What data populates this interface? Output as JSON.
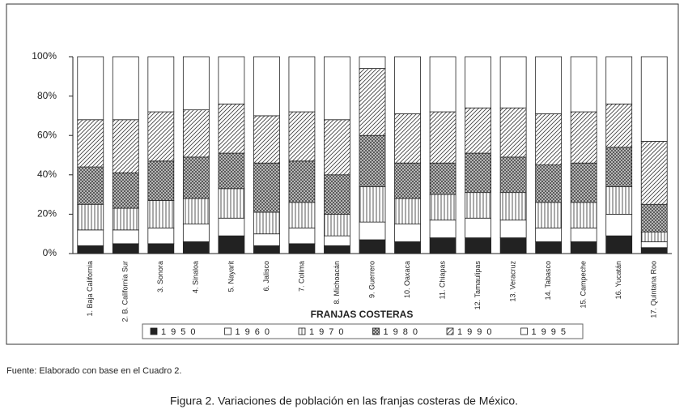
{
  "chart_data": {
    "type": "stacked_bar",
    "categories": [
      "1. Baja California",
      "2. B. California Sur",
      "3. Sonora",
      "4. Sinaloa",
      "5. Nayarit",
      "6. Jalisco",
      "7. Colima",
      "8. Michoacán",
      "9. Guerrero",
      "10. Oaxaca",
      "11. Chiapas",
      "12. Tamaulipas",
      "13. Veracruz",
      "14. Tabasco",
      "15. Campeche",
      "16. Yucatán",
      "17. Quintana Roo"
    ],
    "series": [
      {
        "name": "1950",
        "color": "#222222",
        "values": [
          4,
          5,
          5,
          6,
          9,
          4,
          5,
          4,
          7,
          6,
          8,
          8,
          8,
          6,
          6,
          9,
          3
        ]
      },
      {
        "name": "1960",
        "color": "#ffffff",
        "values": [
          8,
          7,
          8,
          9,
          9,
          6,
          8,
          5,
          9,
          9,
          9,
          10,
          9,
          7,
          7,
          11,
          3
        ]
      },
      {
        "name": "1970",
        "color": "#ffffff",
        "values": [
          13,
          11,
          14,
          13,
          15,
          11,
          13,
          11,
          18,
          13,
          13,
          13,
          14,
          13,
          13,
          14,
          5
        ]
      },
      {
        "name": "1980",
        "color": "#444444",
        "values": [
          19,
          18,
          20,
          21,
          18,
          25,
          21,
          20,
          26,
          18,
          16,
          20,
          18,
          19,
          20,
          20,
          14
        ]
      },
      {
        "name": "1990",
        "color": "#ffffff",
        "values": [
          24,
          27,
          25,
          24,
          25,
          24,
          25,
          28,
          34,
          25,
          26,
          23,
          25,
          26,
          26,
          22,
          32
        ]
      },
      {
        "name": "1995",
        "color": "#ffffff",
        "values": [
          32,
          32,
          28,
          27,
          24,
          30,
          28,
          32,
          6,
          29,
          28,
          26,
          26,
          29,
          28,
          24,
          43
        ]
      }
    ],
    "ylim": [
      0,
      100
    ],
    "yticks": [
      {
        "value": 0,
        "label": "0%"
      },
      {
        "value": 20,
        "label": "20%"
      },
      {
        "value": 40,
        "label": "40%"
      },
      {
        "value": 60,
        "label": "60%"
      },
      {
        "value": 80,
        "label": "80%"
      },
      {
        "value": 100,
        "label": "100%"
      }
    ],
    "xlabel": "FRANJAS COSTERAS",
    "source": "Fuente: Elaborado con base en el Cuadro 2.",
    "caption": "Figura 2. Variaciones de población en las franjas costeras de México."
  }
}
